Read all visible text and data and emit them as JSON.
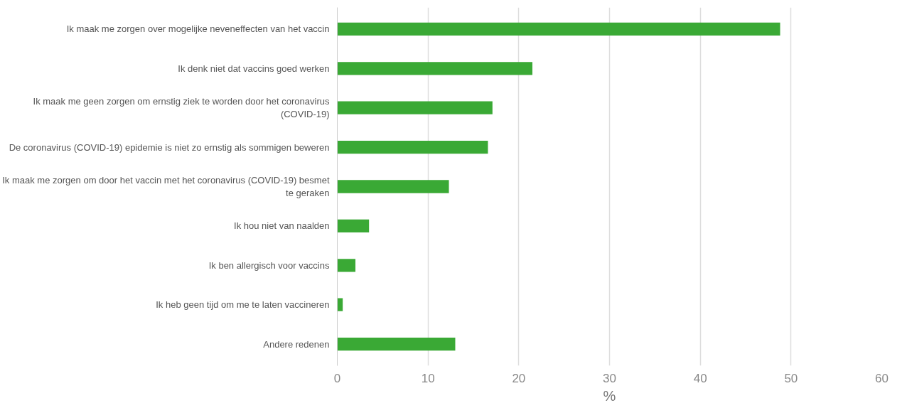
{
  "chart_data": {
    "type": "bar",
    "orientation": "horizontal",
    "categories": [
      "Ik maak me zorgen over mogelijke neveneffecten van het vaccin",
      "Ik denk niet dat vaccins goed werken",
      "Ik maak me geen zorgen om ernstig ziek te worden door het coronavirus (COVID-19)",
      "De coronavirus (COVID-19) epidemie is niet zo ernstig als sommigen beweren",
      "Ik maak me zorgen om door het vaccin met het coronavirus (COVID-19) besmet te geraken",
      "Ik hou niet van naalden",
      "Ik ben allergisch voor vaccins",
      "Ik heb geen tijd om me te laten vaccineren",
      "Andere redenen"
    ],
    "values": [
      48.8,
      21.5,
      17.1,
      16.6,
      12.3,
      3.5,
      2.0,
      0.6,
      13.0
    ],
    "color": "#3aa935",
    "xlabel": "%",
    "xlim": [
      0,
      60
    ],
    "xticks": [
      0,
      10,
      20,
      30,
      40,
      50,
      60
    ],
    "grid": "x"
  }
}
